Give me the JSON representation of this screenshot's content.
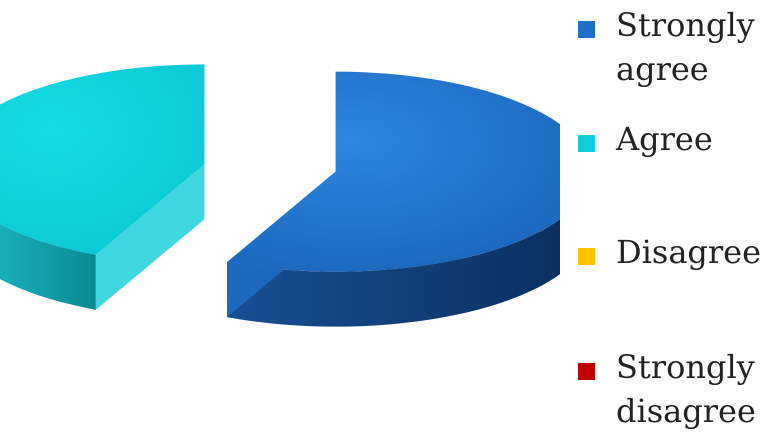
{
  "chart_data": {
    "type": "pie",
    "title": "",
    "style": "3d-exploded",
    "categories": [
      "Strongly agree",
      "Agree",
      "Disagree",
      "Strongly disagree"
    ],
    "values": [
      57,
      43,
      0,
      0
    ],
    "colors": [
      "#1f6fc8",
      "#10cdd8",
      "#ffc000",
      "#c00000"
    ],
    "legend_position": "right"
  }
}
